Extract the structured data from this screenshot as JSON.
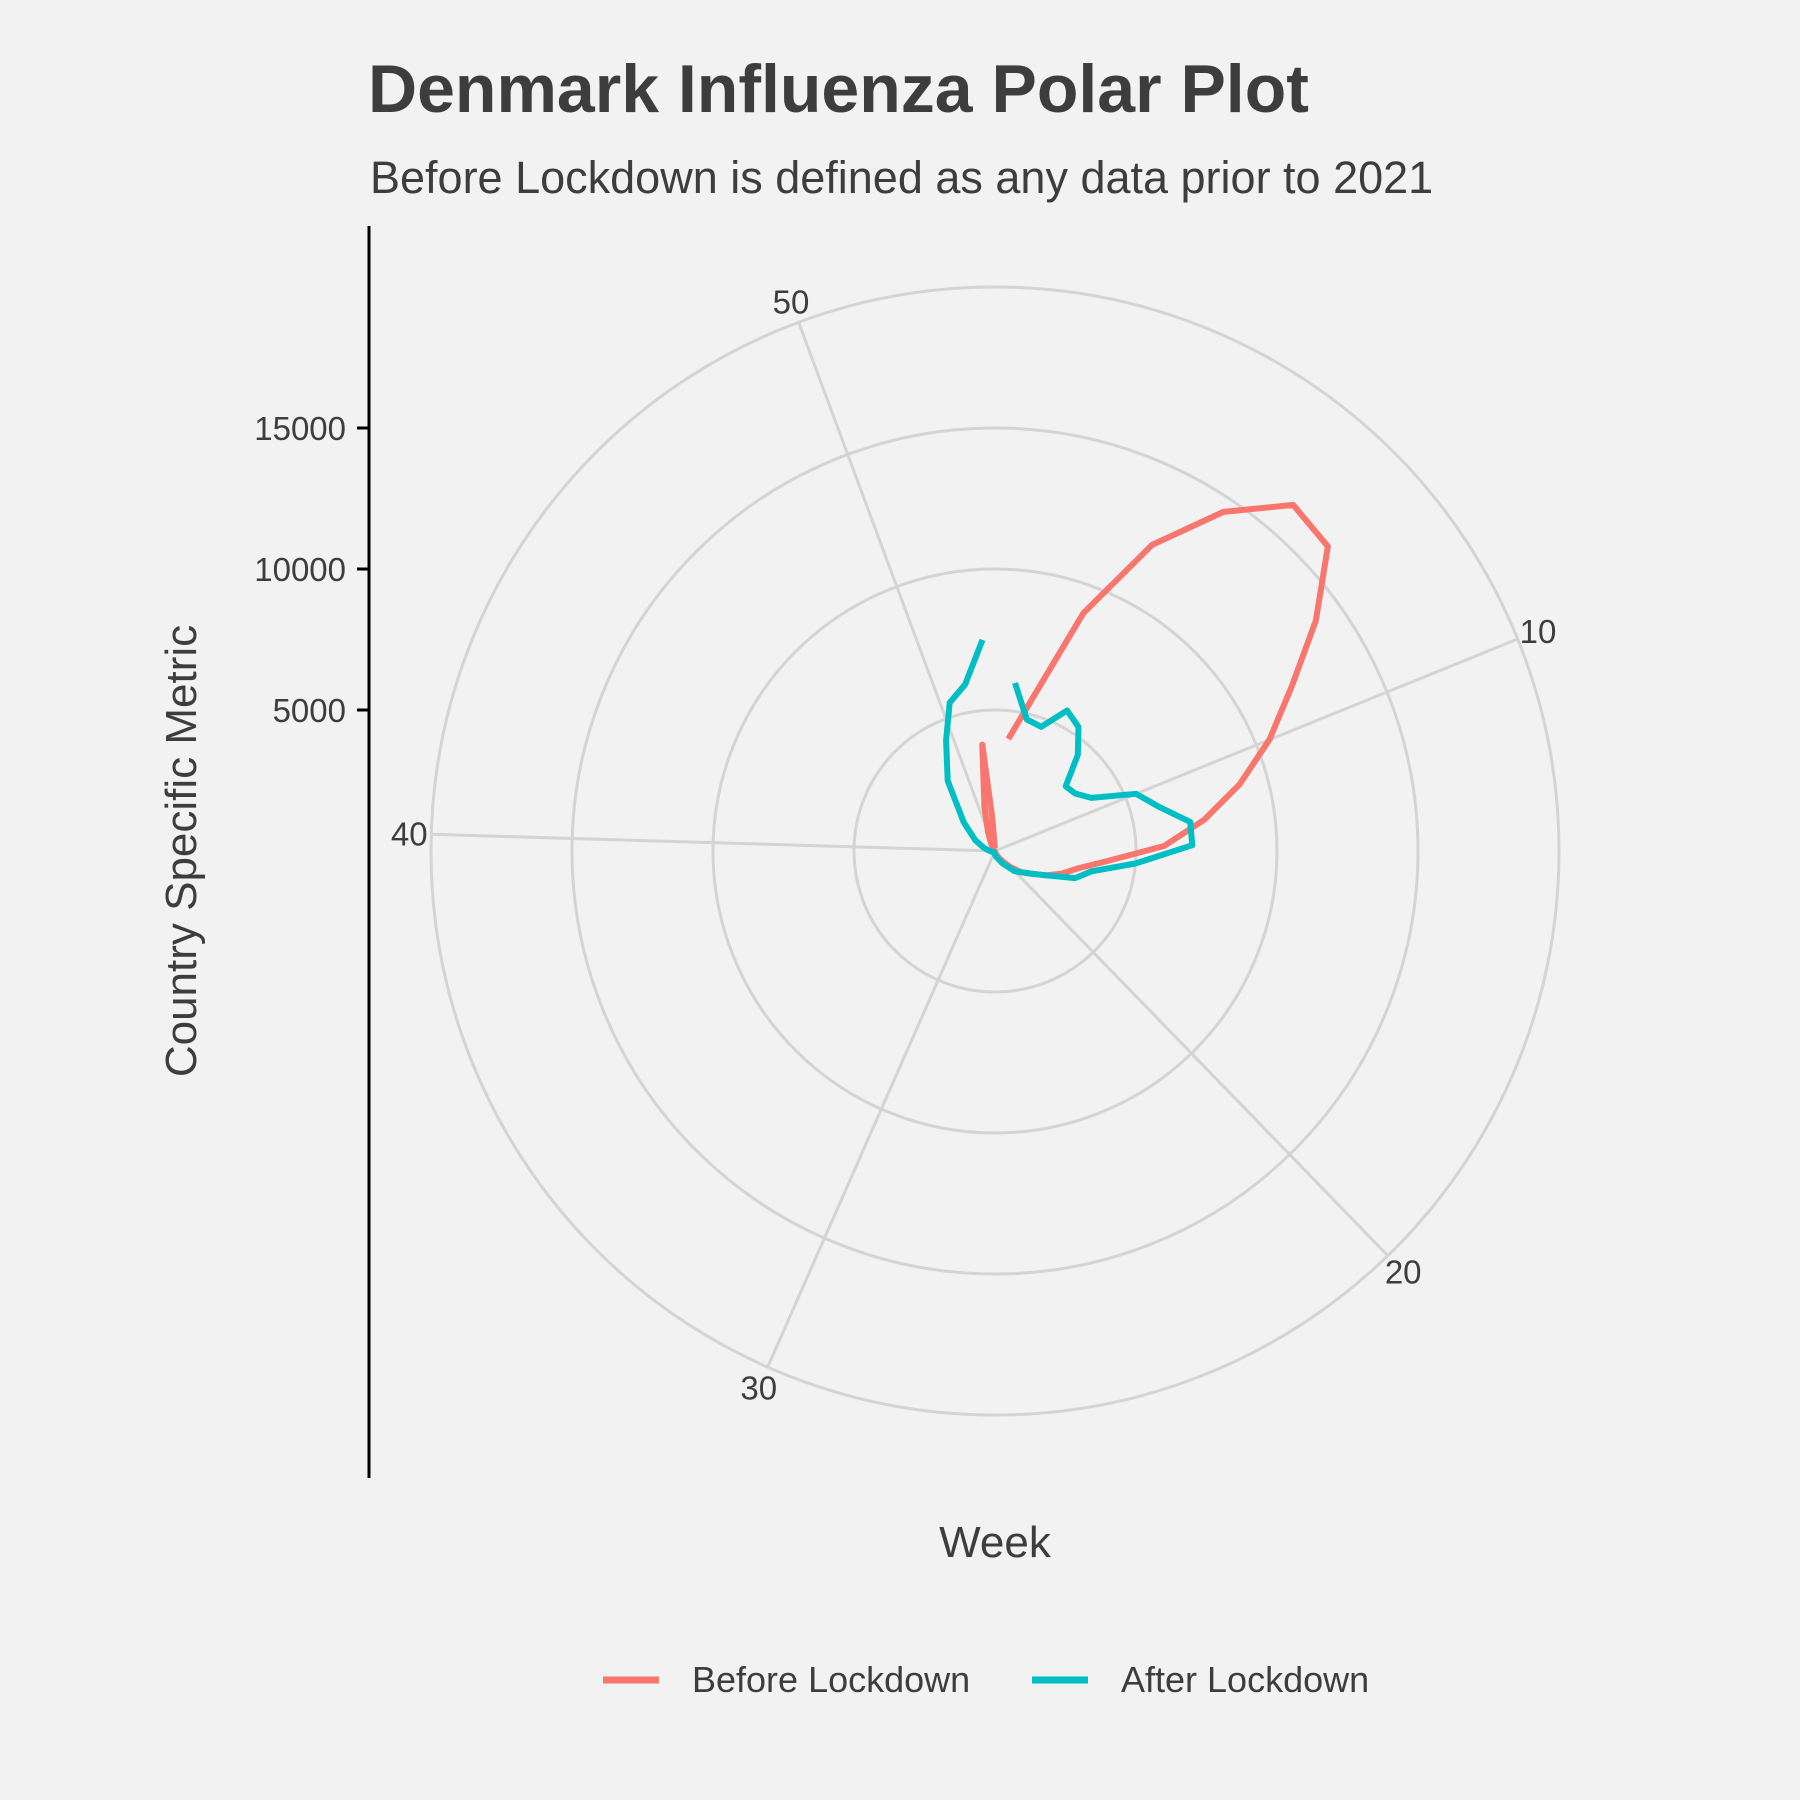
{
  "chart_data": {
    "type": "line",
    "coord": "polar",
    "title": "Denmark Influenza Polar Plot",
    "subtitle": "Before Lockdown is defined as any data prior to 2021",
    "xlabel": "Week",
    "ylabel": "Country Specific Metric",
    "theta_range": [
      0,
      53
    ],
    "r_max": 20000,
    "r_ticks": [
      5000,
      10000,
      15000
    ],
    "theta_ticks": [
      10,
      20,
      30,
      40,
      50
    ],
    "grid": true,
    "legend_position": "bottom",
    "series": [
      {
        "name": "Before Lockdown",
        "color": "#f8766d",
        "points": [
          [
            1,
            4000
          ],
          [
            2,
            5500
          ],
          [
            3,
            9000
          ],
          [
            4,
            12200
          ],
          [
            5,
            14500
          ],
          [
            6,
            16200
          ],
          [
            7,
            16000
          ],
          [
            8,
            14000
          ],
          [
            9,
            12000
          ],
          [
            10,
            10500
          ],
          [
            11,
            9000
          ],
          [
            12,
            7500
          ],
          [
            13,
            6000
          ],
          [
            14,
            4000
          ],
          [
            15,
            3000
          ],
          [
            16,
            2500
          ],
          [
            17,
            2000
          ],
          [
            18,
            1500
          ],
          [
            19,
            1200
          ],
          [
            20,
            800
          ],
          [
            21,
            500
          ],
          [
            22,
            300
          ],
          [
            23,
            200
          ],
          [
            24,
            100
          ],
          [
            25,
            50
          ],
          [
            26,
            30
          ],
          [
            30,
            20
          ],
          [
            40,
            20
          ],
          [
            47,
            100
          ],
          [
            49,
            300
          ],
          [
            50,
            700
          ],
          [
            51,
            1600
          ],
          [
            52,
            3800
          ],
          [
            52.3,
            1200
          ],
          [
            52.6,
            100
          ]
        ]
      },
      {
        "name": "After Lockdown",
        "color": "#00bfc4",
        "points": [
          [
            1,
            6000
          ],
          [
            2,
            4800
          ],
          [
            3,
            4700
          ],
          [
            4,
            5600
          ],
          [
            5,
            5300
          ],
          [
            6,
            4500
          ],
          [
            7,
            3400
          ],
          [
            8,
            3500
          ],
          [
            9,
            3900
          ],
          [
            10,
            5400
          ],
          [
            11,
            6000
          ],
          [
            12,
            7000
          ],
          [
            13,
            7000
          ],
          [
            14,
            5000
          ],
          [
            15,
            3500
          ],
          [
            16,
            3000
          ],
          [
            17,
            2000
          ],
          [
            18,
            1500
          ],
          [
            20,
            1000
          ],
          [
            22,
            500
          ],
          [
            25,
            200
          ],
          [
            28,
            100
          ],
          [
            33,
            50
          ],
          [
            37,
            100
          ],
          [
            40,
            200
          ],
          [
            42,
            400
          ],
          [
            44,
            800
          ],
          [
            46,
            1500
          ],
          [
            48,
            3000
          ],
          [
            49.5,
            4300
          ],
          [
            50.5,
            5500
          ],
          [
            51.5,
            6000
          ],
          [
            52.5,
            7500
          ]
        ]
      }
    ]
  }
}
